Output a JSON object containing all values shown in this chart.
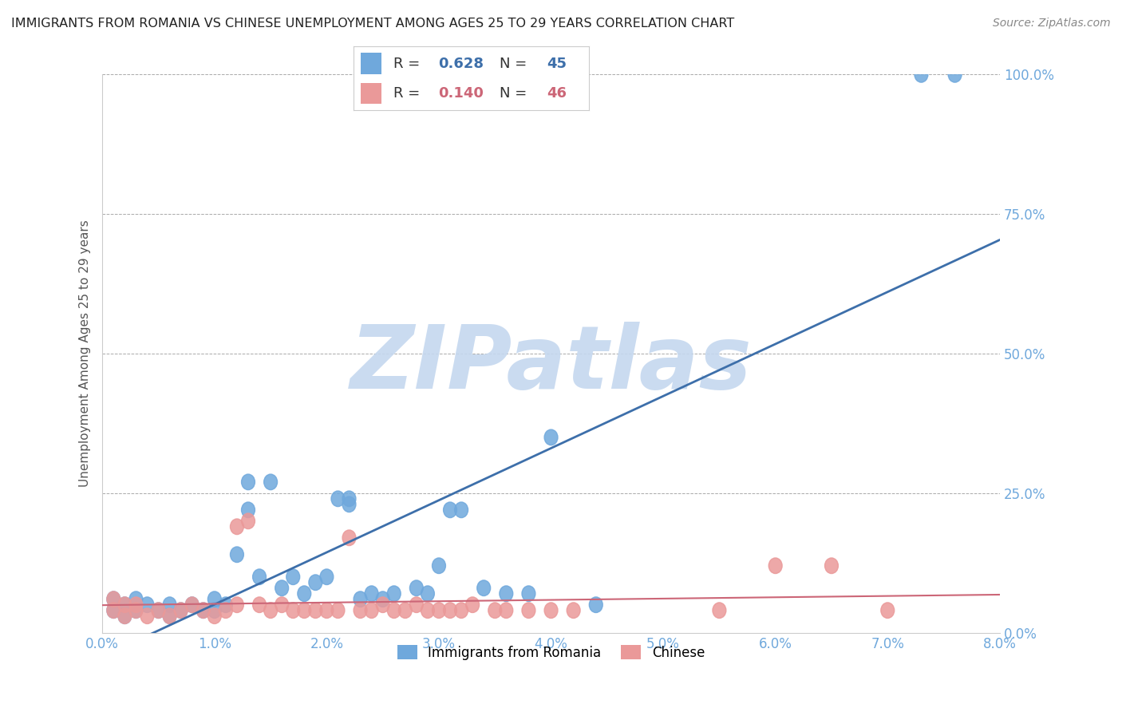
{
  "title": "IMMIGRANTS FROM ROMANIA VS CHINESE UNEMPLOYMENT AMONG AGES 25 TO 29 YEARS CORRELATION CHART",
  "source": "Source: ZipAtlas.com",
  "ylabel": "Unemployment Among Ages 25 to 29 years",
  "xlim": [
    0.0,
    0.08
  ],
  "ylim": [
    0.0,
    1.0
  ],
  "xticks": [
    0.0,
    0.01,
    0.02,
    0.03,
    0.04,
    0.05,
    0.06,
    0.07,
    0.08
  ],
  "xticklabels": [
    "0.0%",
    "1.0%",
    "2.0%",
    "3.0%",
    "4.0%",
    "5.0%",
    "6.0%",
    "7.0%",
    "8.0%"
  ],
  "yticks": [
    0.0,
    0.25,
    0.5,
    0.75,
    1.0
  ],
  "yticklabels": [
    "0.0%",
    "25.0%",
    "50.0%",
    "75.0%",
    "100.0%"
  ],
  "legend_labels": [
    "Immigrants from Romania",
    "Chinese"
  ],
  "legend_R": [
    0.628,
    0.14
  ],
  "legend_N": [
    45,
    46
  ],
  "blue_color": "#6fa8dc",
  "pink_color": "#ea9999",
  "blue_line_color": "#3d6faa",
  "pink_line_color": "#cc6677",
  "watermark": "ZIPatlas",
  "watermark_color": "#c5d8ef",
  "background_color": "#ffffff",
  "grid_color": "#aaaaaa",
  "title_color": "#222222",
  "source_color": "#888888",
  "tick_color": "#6fa8dc",
  "ylabel_color": "#555555",
  "blue_scatter_x": [
    0.001,
    0.001,
    0.002,
    0.002,
    0.003,
    0.003,
    0.004,
    0.005,
    0.006,
    0.006,
    0.007,
    0.008,
    0.009,
    0.01,
    0.01,
    0.011,
    0.012,
    0.013,
    0.013,
    0.014,
    0.015,
    0.016,
    0.017,
    0.018,
    0.019,
    0.02,
    0.021,
    0.022,
    0.022,
    0.023,
    0.024,
    0.025,
    0.026,
    0.028,
    0.029,
    0.03,
    0.031,
    0.032,
    0.034,
    0.036,
    0.038,
    0.04,
    0.044,
    0.073,
    0.076
  ],
  "blue_scatter_y": [
    0.04,
    0.06,
    0.05,
    0.03,
    0.04,
    0.06,
    0.05,
    0.04,
    0.05,
    0.03,
    0.04,
    0.05,
    0.04,
    0.06,
    0.04,
    0.05,
    0.14,
    0.27,
    0.22,
    0.1,
    0.27,
    0.08,
    0.1,
    0.07,
    0.09,
    0.1,
    0.24,
    0.23,
    0.24,
    0.06,
    0.07,
    0.06,
    0.07,
    0.08,
    0.07,
    0.12,
    0.22,
    0.22,
    0.08,
    0.07,
    0.07,
    0.35,
    0.05,
    1.0,
    1.0
  ],
  "pink_scatter_x": [
    0.001,
    0.001,
    0.002,
    0.002,
    0.003,
    0.003,
    0.004,
    0.005,
    0.006,
    0.007,
    0.008,
    0.009,
    0.01,
    0.011,
    0.012,
    0.012,
    0.013,
    0.014,
    0.015,
    0.016,
    0.017,
    0.018,
    0.019,
    0.02,
    0.021,
    0.022,
    0.023,
    0.024,
    0.025,
    0.026,
    0.027,
    0.028,
    0.029,
    0.03,
    0.031,
    0.032,
    0.033,
    0.035,
    0.036,
    0.038,
    0.04,
    0.042,
    0.055,
    0.06,
    0.065,
    0.07
  ],
  "pink_scatter_y": [
    0.04,
    0.06,
    0.05,
    0.03,
    0.05,
    0.04,
    0.03,
    0.04,
    0.03,
    0.04,
    0.05,
    0.04,
    0.03,
    0.04,
    0.19,
    0.05,
    0.2,
    0.05,
    0.04,
    0.05,
    0.04,
    0.04,
    0.04,
    0.04,
    0.04,
    0.17,
    0.04,
    0.04,
    0.05,
    0.04,
    0.04,
    0.05,
    0.04,
    0.04,
    0.04,
    0.04,
    0.05,
    0.04,
    0.04,
    0.04,
    0.04,
    0.04,
    0.04,
    0.12,
    0.12,
    0.04
  ]
}
